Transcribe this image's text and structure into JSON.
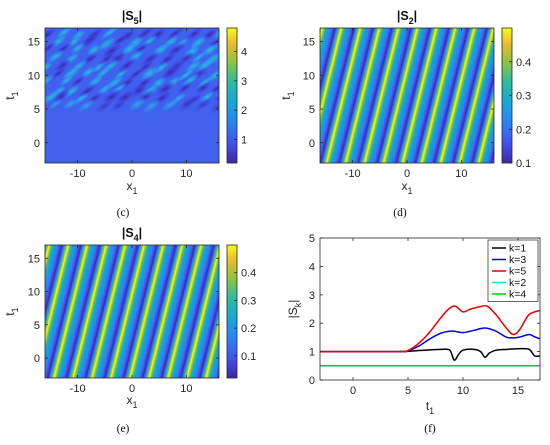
{
  "chart_data": [
    {
      "panel": "c",
      "type": "heatmap",
      "title": "|S5|",
      "title_main": "S",
      "title_sub": "5",
      "xlabel_main": "x",
      "xlabel_sub": "1",
      "ylabel_main": "t",
      "ylabel_sub": "1",
      "xlim": [
        -16,
        16
      ],
      "ylim": [
        -3,
        17
      ],
      "xticks": [
        -10,
        0,
        10
      ],
      "yticks": [
        0,
        5,
        10,
        15
      ],
      "colorbar": {
        "min": 0.2,
        "max": 4.8,
        "ticks": [
          1,
          2,
          3,
          4
        ]
      },
      "pattern": "flat ~1 for t1 < 5, oblique lump structures for t1 > 7",
      "caption": "(c)"
    },
    {
      "panel": "d",
      "type": "heatmap",
      "title": "|S2|",
      "title_main": "S",
      "title_sub": "2",
      "xlabel_main": "x",
      "xlabel_sub": "1",
      "ylabel_main": "t",
      "ylabel_sub": "1",
      "xlim": [
        -16,
        16
      ],
      "ylim": [
        -3,
        17
      ],
      "xticks": [
        -10,
        0,
        10
      ],
      "yticks": [
        0,
        5,
        10,
        15
      ],
      "colorbar": {
        "min": 0.1,
        "max": 0.5,
        "ticks": [
          0.1,
          0.2,
          0.3,
          0.4
        ]
      },
      "pattern": "periodic oblique stripes",
      "caption": "(d)"
    },
    {
      "panel": "e",
      "type": "heatmap",
      "title": "|S4|",
      "title_main": "S",
      "title_sub": "4",
      "xlabel_main": "x",
      "xlabel_sub": "1",
      "ylabel_main": "t",
      "ylabel_sub": "1",
      "xlim": [
        -16,
        16
      ],
      "ylim": [
        -3,
        17
      ],
      "xticks": [
        -10,
        0,
        10
      ],
      "yticks": [
        0,
        5,
        10,
        15
      ],
      "colorbar": {
        "min": 0.02,
        "max": 0.5,
        "ticks": [
          0.1,
          0.2,
          0.3,
          0.4
        ]
      },
      "pattern": "periodic oblique stripes",
      "caption": "(e)"
    },
    {
      "panel": "f",
      "type": "line",
      "xlabel_main": "t",
      "xlabel_sub": "1",
      "ylabel_main": "|S",
      "ylabel_sub": "k",
      "ylabel_end": "|",
      "xlim": [
        -3,
        17
      ],
      "ylim": [
        0,
        5
      ],
      "xticks": [
        0,
        5,
        10,
        15
      ],
      "yticks": [
        0,
        1,
        2,
        3,
        4,
        5
      ],
      "legend_position": "top-right",
      "series": [
        {
          "name": "k=1",
          "color": "#000000",
          "x": [
            -3,
            4,
            5,
            6,
            7,
            8,
            8.8,
            9.2,
            9.6,
            10,
            11,
            11.6,
            12,
            12.4,
            13,
            14,
            15,
            16,
            16.5,
            17
          ],
          "y": [
            1.0,
            1.0,
            1.01,
            1.04,
            1.06,
            1.08,
            1.05,
            0.7,
            0.9,
            1.05,
            1.08,
            1.0,
            0.8,
            0.95,
            1.05,
            1.08,
            1.1,
            1.08,
            0.85,
            0.85
          ]
        },
        {
          "name": "k=3",
          "color": "#0000ee",
          "x": [
            -3,
            4,
            5,
            6,
            7,
            8,
            9,
            10,
            11,
            12,
            13,
            14,
            15,
            16,
            16.5,
            17
          ],
          "y": [
            1.0,
            1.0,
            1.03,
            1.2,
            1.45,
            1.65,
            1.72,
            1.67,
            1.75,
            1.83,
            1.72,
            1.5,
            1.5,
            1.6,
            1.52,
            1.45
          ]
        },
        {
          "name": "k=5",
          "color": "#ee0000",
          "x": [
            -3,
            4,
            5,
            6,
            7,
            8,
            8.7,
            9.3,
            10,
            10.7,
            11.5,
            12.2,
            13,
            14,
            14.6,
            15.2,
            16,
            17
          ],
          "y": [
            1.0,
            1.0,
            1.04,
            1.3,
            1.7,
            2.2,
            2.5,
            2.6,
            2.4,
            2.5,
            2.58,
            2.6,
            2.3,
            1.8,
            1.6,
            1.8,
            2.3,
            2.45
          ]
        },
        {
          "name": "k=2",
          "color": "#00e5e5",
          "x": [
            -3,
            17
          ],
          "y": [
            0.5,
            0.5
          ]
        },
        {
          "name": "k=4",
          "color": "#00cc00",
          "x": [
            -3,
            17
          ],
          "y": [
            0.5,
            0.5
          ]
        }
      ],
      "caption": "(f)"
    }
  ]
}
